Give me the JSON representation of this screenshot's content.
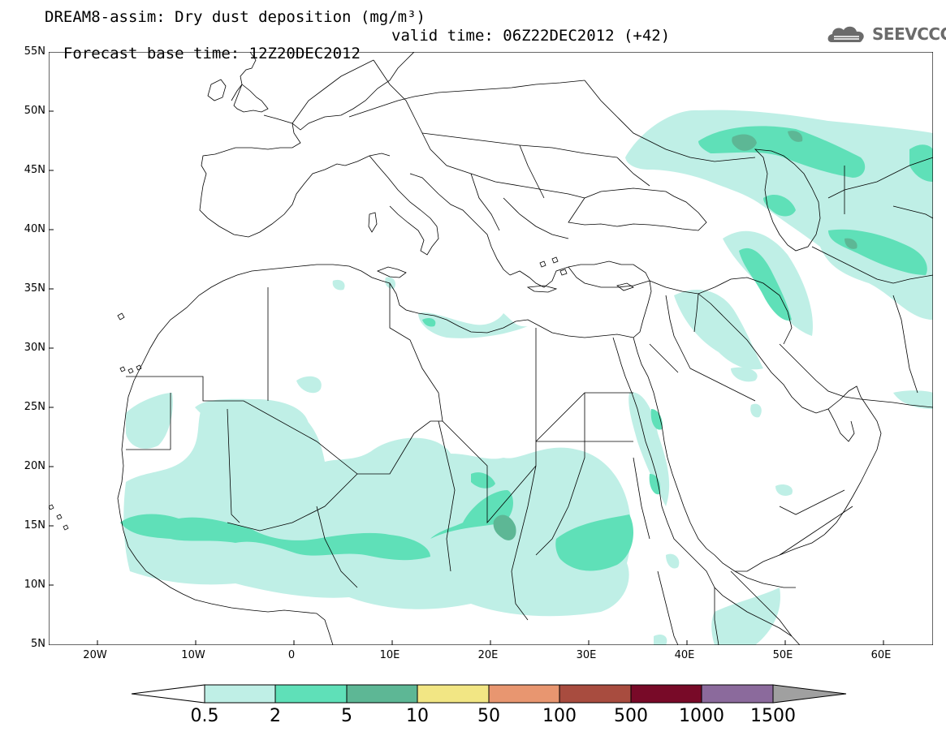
{
  "header": {
    "title_line1": "DREAM8-assim: Dry dust deposition (mg/m³)",
    "forecast_base": "Forecast base time: 12Z20DEC2012",
    "valid_time": "valid time: 06Z22DEC2012 (+42)"
  },
  "logo": {
    "text": "SEEVCCC",
    "icon": "cloud-icon"
  },
  "axes": {
    "lat_labels": [
      "55N",
      "50N",
      "45N",
      "40N",
      "35N",
      "30N",
      "25N",
      "20N",
      "15N",
      "10N",
      "5N"
    ],
    "lon_labels": [
      "20W",
      "10W",
      "0",
      "10E",
      "20E",
      "30E",
      "40E",
      "50E",
      "60E"
    ],
    "lat_range": [
      5,
      55
    ],
    "lon_range": [
      -25,
      65
    ]
  },
  "colorbar": {
    "labels": [
      "0.5",
      "2",
      "5",
      "10",
      "50",
      "100",
      "500",
      "1000",
      "1500"
    ],
    "colors": [
      "#bfefe6",
      "#5fe0b8",
      "#5db795",
      "#f2e684",
      "#e89670",
      "#a84c3f",
      "#780a28",
      "#8b6a9c",
      "#a0a0a0"
    ]
  }
}
